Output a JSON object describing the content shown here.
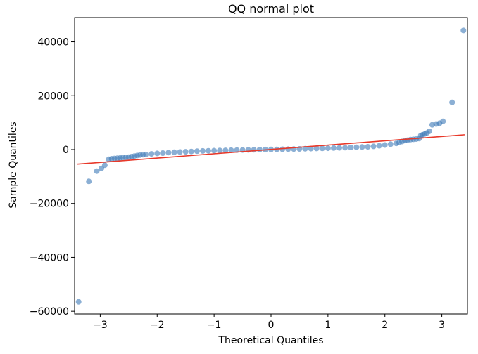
{
  "chart_data": {
    "type": "scatter",
    "title": "QQ normal plot",
    "xlabel": "Theoretical Quantiles",
    "ylabel": "Sample Quantiles",
    "xlim": [
      -3.45,
      3.45
    ],
    "ylim": [
      -61000,
      49000
    ],
    "xticks": [
      -3,
      -2,
      -1,
      0,
      1,
      2,
      3
    ],
    "xtick_labels": [
      "−3",
      "−2",
      "−1",
      "0",
      "1",
      "2",
      "3"
    ],
    "yticks": [
      -60000,
      -40000,
      -20000,
      0,
      20000,
      40000
    ],
    "ytick_labels": [
      "−60000",
      "−40000",
      "−20000",
      "0",
      "20000",
      "40000"
    ],
    "grid": false,
    "point_color": "#3d7ab8",
    "line_color": "#e8392a",
    "reference_line": {
      "x": [
        -3.4,
        3.4
      ],
      "y": [
        -5400,
        5500
      ]
    },
    "points": {
      "x": [
        -3.38,
        -3.2,
        -3.06,
        -2.98,
        -2.92,
        -2.85,
        -2.8,
        -2.75,
        -2.7,
        -2.65,
        -2.6,
        -2.55,
        -2.5,
        -2.45,
        -2.4,
        -2.35,
        -2.3,
        -2.25,
        -2.2,
        -2.1,
        -2.0,
        -1.9,
        -1.8,
        -1.7,
        -1.6,
        -1.5,
        -1.4,
        -1.3,
        -1.2,
        -1.1,
        -1.0,
        -0.9,
        -0.8,
        -0.7,
        -0.6,
        -0.5,
        -0.4,
        -0.3,
        -0.2,
        -0.1,
        0.0,
        0.1,
        0.2,
        0.3,
        0.4,
        0.5,
        0.6,
        0.7,
        0.8,
        0.9,
        1.0,
        1.1,
        1.2,
        1.3,
        1.4,
        1.5,
        1.6,
        1.7,
        1.8,
        1.9,
        2.0,
        2.1,
        2.2,
        2.25,
        2.3,
        2.35,
        2.4,
        2.45,
        2.5,
        2.55,
        2.6,
        2.63,
        2.66,
        2.7,
        2.74,
        2.78,
        2.83,
        2.9,
        2.96,
        3.02,
        3.18,
        3.38
      ],
      "y": [
        -56500,
        -11800,
        -8000,
        -7000,
        -5800,
        -3600,
        -3400,
        -3300,
        -3200,
        -3100,
        -3000,
        -2900,
        -2800,
        -2600,
        -2400,
        -2200,
        -2000,
        -1900,
        -1800,
        -1600,
        -1400,
        -1300,
        -1100,
        -1000,
        -900,
        -800,
        -700,
        -600,
        -500,
        -450,
        -400,
        -350,
        -300,
        -250,
        -200,
        -150,
        -100,
        -50,
        0,
        20,
        50,
        80,
        120,
        160,
        200,
        250,
        300,
        350,
        400,
        450,
        500,
        560,
        620,
        700,
        780,
        860,
        950,
        1050,
        1200,
        1400,
        1700,
        2000,
        2300,
        2600,
        3000,
        3300,
        3500,
        3700,
        3800,
        3900,
        4100,
        5200,
        5500,
        5800,
        6200,
        6800,
        9200,
        9500,
        9800,
        10500,
        17500,
        44200
      ]
    }
  }
}
